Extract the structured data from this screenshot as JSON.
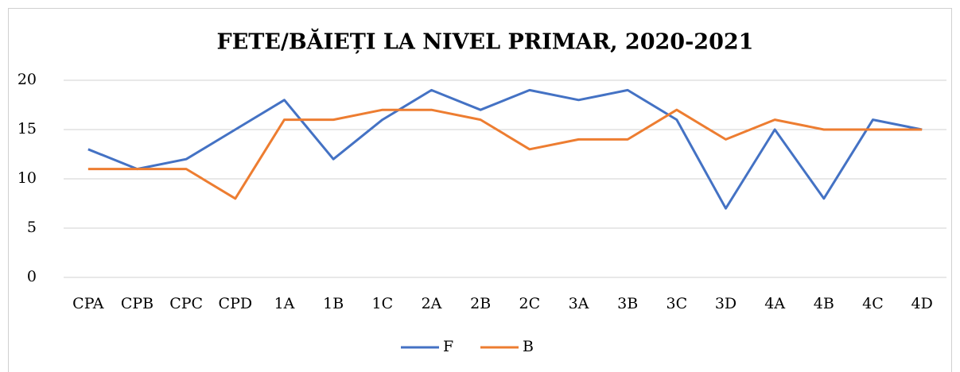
{
  "chart_data": {
    "type": "line",
    "title": "FETE/BĂIEȚI LA NIVEL PRIMAR, 2020-2021",
    "categories": [
      "CPA",
      "CPB",
      "CPC",
      "CPD",
      "1A",
      "1B",
      "1C",
      "2A",
      "2B",
      "2C",
      "3A",
      "3B",
      "3C",
      "3D",
      "4A",
      "4B",
      "4C",
      "4D"
    ],
    "series": [
      {
        "name": "F",
        "color": "#4472c4",
        "values": [
          13,
          11,
          12,
          15,
          18,
          12,
          16,
          19,
          17,
          19,
          18,
          19,
          16,
          7,
          15,
          8,
          16,
          15
        ]
      },
      {
        "name": "B",
        "color": "#ed7d31",
        "values": [
          11,
          11,
          11,
          8,
          16,
          16,
          17,
          17,
          16,
          13,
          14,
          14,
          17,
          14,
          16,
          15,
          15,
          15
        ]
      }
    ],
    "ylim": [
      0,
      20
    ],
    "yticks": [
      0,
      5,
      10,
      15,
      20
    ],
    "grid": true,
    "legend": "bottom"
  }
}
